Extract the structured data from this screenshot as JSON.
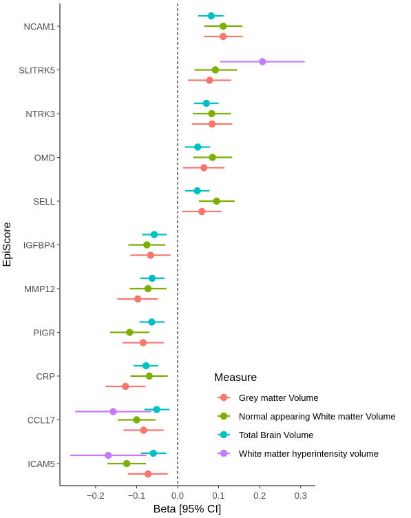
{
  "chart_data": {
    "type": "scatter",
    "subtype": "forest-plot",
    "xlabel": "Beta [95% CI]",
    "ylabel": "EpiScore",
    "xlim": [
      -0.27,
      0.335
    ],
    "xticks": [
      -0.2,
      -0.1,
      0.0,
      0.1,
      0.2,
      0.3
    ],
    "xtick_labels": [
      "−0.2",
      "−0.1",
      "0.0",
      "0.1",
      "0.2",
      "0.3"
    ],
    "reference_line": 0,
    "grid": false,
    "legend": {
      "title": "Measure",
      "position": "bottom-right"
    },
    "categories": [
      "NCAM1",
      "SLITRK5",
      "NTRK3",
      "OMD",
      "SELL",
      "IGFBP4",
      "MMP12",
      "PIGR",
      "CRP",
      "CCL17",
      "ICAM5"
    ],
    "series": [
      {
        "name": "Total Brain Volume",
        "color": "#00BFC4",
        "points": [
          {
            "category": "NCAM1",
            "beta": 0.082,
            "lo": 0.05,
            "hi": 0.112
          },
          {
            "category": "NTRK3",
            "beta": 0.07,
            "lo": 0.04,
            "hi": 0.1
          },
          {
            "category": "OMD",
            "beta": 0.049,
            "lo": 0.018,
            "hi": 0.079
          },
          {
            "category": "SELL",
            "beta": 0.048,
            "lo": 0.018,
            "hi": 0.078
          },
          {
            "category": "IGFBP4",
            "beta": -0.057,
            "lo": -0.086,
            "hi": -0.027
          },
          {
            "category": "MMP12",
            "beta": -0.062,
            "lo": -0.091,
            "hi": -0.032
          },
          {
            "category": "PIGR",
            "beta": -0.063,
            "lo": -0.093,
            "hi": -0.032
          },
          {
            "category": "CRP",
            "beta": -0.077,
            "lo": -0.107,
            "hi": -0.047
          },
          {
            "category": "CCL17",
            "beta": -0.051,
            "lo": -0.081,
            "hi": -0.02
          },
          {
            "category": "ICAM5",
            "beta": -0.059,
            "lo": -0.089,
            "hi": -0.028
          }
        ]
      },
      {
        "name": "Normal appearing White matter Volume",
        "color": "#7CAE00",
        "points": [
          {
            "category": "NCAM1",
            "beta": 0.111,
            "lo": 0.065,
            "hi": 0.158
          },
          {
            "category": "SLITRK5",
            "beta": 0.092,
            "lo": 0.041,
            "hi": 0.145
          },
          {
            "category": "NTRK3",
            "beta": 0.083,
            "lo": 0.037,
            "hi": 0.13
          },
          {
            "category": "OMD",
            "beta": 0.085,
            "lo": 0.038,
            "hi": 0.133
          },
          {
            "category": "SELL",
            "beta": 0.095,
            "lo": 0.052,
            "hi": 0.139
          },
          {
            "category": "IGFBP4",
            "beta": -0.075,
            "lo": -0.12,
            "hi": -0.03
          },
          {
            "category": "MMP12",
            "beta": -0.072,
            "lo": -0.117,
            "hi": -0.027
          },
          {
            "category": "PIGR",
            "beta": -0.117,
            "lo": -0.165,
            "hi": -0.069
          },
          {
            "category": "CRP",
            "beta": -0.069,
            "lo": -0.115,
            "hi": -0.024
          },
          {
            "category": "CCL17",
            "beta": -0.1,
            "lo": -0.146,
            "hi": -0.054
          },
          {
            "category": "ICAM5",
            "beta": -0.124,
            "lo": -0.171,
            "hi": -0.077
          }
        ]
      },
      {
        "name": "Grey matter Volume",
        "color": "#F8766D",
        "points": [
          {
            "category": "NCAM1",
            "beta": 0.111,
            "lo": 0.064,
            "hi": 0.159
          },
          {
            "category": "SLITRK5",
            "beta": 0.078,
            "lo": 0.025,
            "hi": 0.131
          },
          {
            "category": "NTRK3",
            "beta": 0.084,
            "lo": 0.035,
            "hi": 0.133
          },
          {
            "category": "OMD",
            "beta": 0.064,
            "lo": 0.013,
            "hi": 0.114
          },
          {
            "category": "SELL",
            "beta": 0.059,
            "lo": 0.011,
            "hi": 0.107
          },
          {
            "category": "IGFBP4",
            "beta": -0.066,
            "lo": -0.115,
            "hi": -0.017
          },
          {
            "category": "MMP12",
            "beta": -0.097,
            "lo": -0.147,
            "hi": -0.048
          },
          {
            "category": "PIGR",
            "beta": -0.084,
            "lo": -0.134,
            "hi": -0.034
          },
          {
            "category": "CRP",
            "beta": -0.127,
            "lo": -0.176,
            "hi": -0.078
          },
          {
            "category": "CCL17",
            "beta": -0.083,
            "lo": -0.132,
            "hi": -0.034
          },
          {
            "category": "ICAM5",
            "beta": -0.072,
            "lo": -0.121,
            "hi": -0.024
          }
        ]
      },
      {
        "name": "White matter hyperintensity volume",
        "color": "#C77CFF",
        "points": [
          {
            "category": "SLITRK5",
            "beta": 0.207,
            "lo": 0.104,
            "hi": 0.31
          },
          {
            "category": "CCL17",
            "beta": -0.157,
            "lo": -0.25,
            "hi": -0.064
          },
          {
            "category": "ICAM5",
            "beta": -0.169,
            "lo": -0.262,
            "hi": -0.076
          }
        ]
      }
    ],
    "legend_order": [
      "Grey matter Volume",
      "Normal appearing White matter Volume",
      "Total Brain Volume",
      "White matter hyperintensity volume"
    ]
  }
}
